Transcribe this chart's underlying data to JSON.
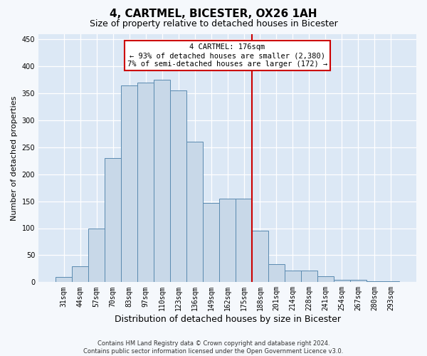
{
  "title": "4, CARTMEL, BICESTER, OX26 1AH",
  "subtitle": "Size of property relative to detached houses in Bicester",
  "xlabel": "Distribution of detached houses by size in Bicester",
  "ylabel": "Number of detached properties",
  "footer_line1": "Contains HM Land Registry data © Crown copyright and database right 2024.",
  "footer_line2": "Contains public sector information licensed under the Open Government Licence v3.0.",
  "categories": [
    "31sqm",
    "44sqm",
    "57sqm",
    "70sqm",
    "83sqm",
    "97sqm",
    "110sqm",
    "123sqm",
    "136sqm",
    "149sqm",
    "162sqm",
    "175sqm",
    "188sqm",
    "201sqm",
    "214sqm",
    "228sqm",
    "241sqm",
    "254sqm",
    "267sqm",
    "280sqm",
    "293sqm"
  ],
  "values": [
    10,
    30,
    100,
    230,
    365,
    370,
    375,
    355,
    260,
    147,
    155,
    155,
    95,
    33,
    22,
    22,
    11,
    5,
    5,
    2,
    2
  ],
  "bar_color": "#c8d8e8",
  "bar_edge_color": "#5a8ab0",
  "vline_color": "#cc0000",
  "annotation_title": "4 CARTMEL: 176sqm",
  "annotation_line1": "← 93% of detached houses are smaller (2,380)",
  "annotation_line2": "7% of semi-detached houses are larger (172) →",
  "annotation_box_color": "#cc0000",
  "annotation_bg": "#ffffff",
  "ylim": [
    0,
    460
  ],
  "yticks": [
    0,
    50,
    100,
    150,
    200,
    250,
    300,
    350,
    400,
    450
  ],
  "fig_bg_color": "#f5f8fc",
  "ax_bg_color": "#dce8f5",
  "grid_color": "#ffffff",
  "title_fontsize": 11,
  "subtitle_fontsize": 9,
  "ylabel_fontsize": 8,
  "xlabel_fontsize": 9,
  "tick_fontsize": 7,
  "annotation_fontsize": 7.5,
  "footer_fontsize": 6
}
